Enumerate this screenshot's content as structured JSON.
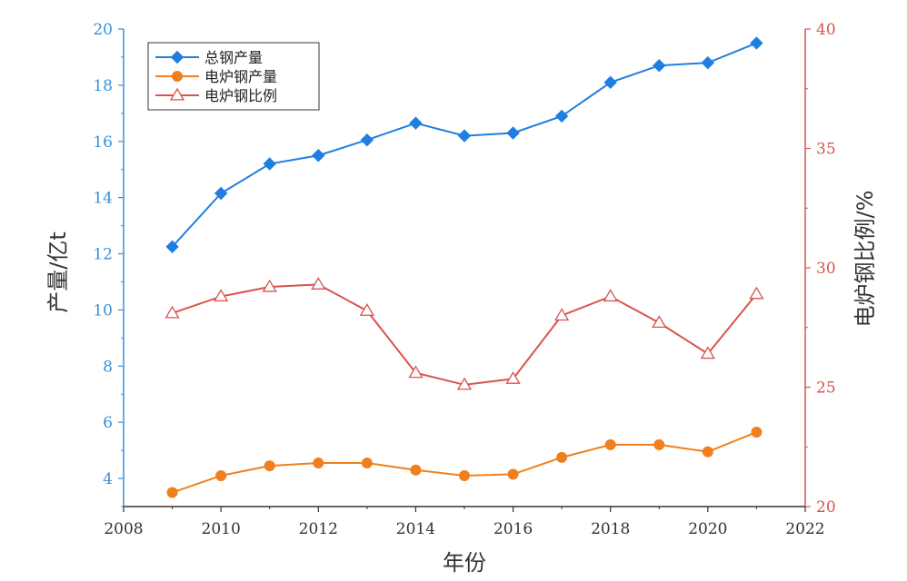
{
  "chart_data": {
    "type": "line",
    "xlabel": "年份",
    "ylabel_left": "产量/亿t",
    "ylabel_right": "电炉钢比例/%",
    "xlim": [
      2008,
      2022
    ],
    "x_ticks": [
      2008,
      2010,
      2012,
      2014,
      2016,
      2018,
      2020,
      2022
    ],
    "ylim_left": [
      3,
      20
    ],
    "y_ticks_left": [
      4,
      6,
      8,
      10,
      12,
      14,
      16,
      18,
      20
    ],
    "ylim_right": [
      20,
      40
    ],
    "y_ticks_right": [
      20,
      25,
      30,
      35,
      40
    ],
    "x": [
      2009,
      2010,
      2011,
      2012,
      2013,
      2014,
      2015,
      2016,
      2017,
      2018,
      2019,
      2020,
      2021
    ],
    "series": [
      {
        "name": "总钢产量",
        "axis": "left",
        "marker": "diamond",
        "color": "#1f7fe0",
        "values": [
          12.25,
          14.15,
          15.2,
          15.5,
          16.05,
          16.65,
          16.2,
          16.3,
          16.9,
          18.1,
          18.7,
          18.8,
          19.5
        ]
      },
      {
        "name": "电炉钢产量",
        "axis": "left",
        "marker": "circle",
        "color": "#f07f1d",
        "values": [
          3.5,
          4.1,
          4.45,
          4.55,
          4.55,
          4.3,
          4.1,
          4.15,
          4.75,
          5.2,
          5.2,
          4.95,
          5.65
        ]
      },
      {
        "name": "电炉钢比例",
        "axis": "right",
        "marker": "triangle-open",
        "color": "#d9534f",
        "values": [
          28.1,
          28.8,
          29.2,
          29.3,
          28.2,
          25.6,
          25.1,
          25.35,
          28.0,
          28.8,
          27.7,
          26.4,
          28.9
        ]
      }
    ],
    "legend_position": "top-left",
    "grid": false
  },
  "colors": {
    "left_axis": "#3a8fd9",
    "right_axis": "#d9534f",
    "bottom_axis": "#333333"
  }
}
